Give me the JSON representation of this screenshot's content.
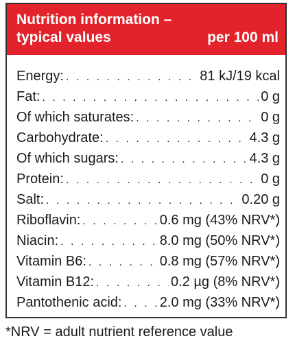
{
  "header": {
    "title_line1": "Nutrition information –",
    "title_line2": "typical values",
    "per_label": "per 100 ml"
  },
  "rows": [
    {
      "label": "Energy:",
      "value": "81 kJ/19 kcal"
    },
    {
      "label": "Fat:",
      "value": "0 g"
    },
    {
      "label": "Of which saturates:",
      "value": "0 g"
    },
    {
      "label": "Carbohydrate:",
      "value": "4.3 g"
    },
    {
      "label": "Of which sugars:",
      "value": "4.3 g"
    },
    {
      "label": "Protein:",
      "value": "0 g"
    },
    {
      "label": "Salt:",
      "value": "0.20 g"
    },
    {
      "label": "Riboflavin:",
      "value": "0.6 mg (43% NRV*)"
    },
    {
      "label": "Niacin:",
      "value": "8.0 mg (50% NRV*)"
    },
    {
      "label": "Vitamin B6:",
      "value": "0.8 mg (57% NRV*)"
    },
    {
      "label": "Vitamin B12:",
      "value": "0.2 µg (8% NRV*)"
    },
    {
      "label": "Pantothenic acid:",
      "value": "2.0 mg (33% NRV*)"
    }
  ],
  "footnote": "*NRV = adult nutrient reference value",
  "colors": {
    "header_bg": "#e3232b",
    "header_text": "#ffffff",
    "border": "#333333"
  }
}
